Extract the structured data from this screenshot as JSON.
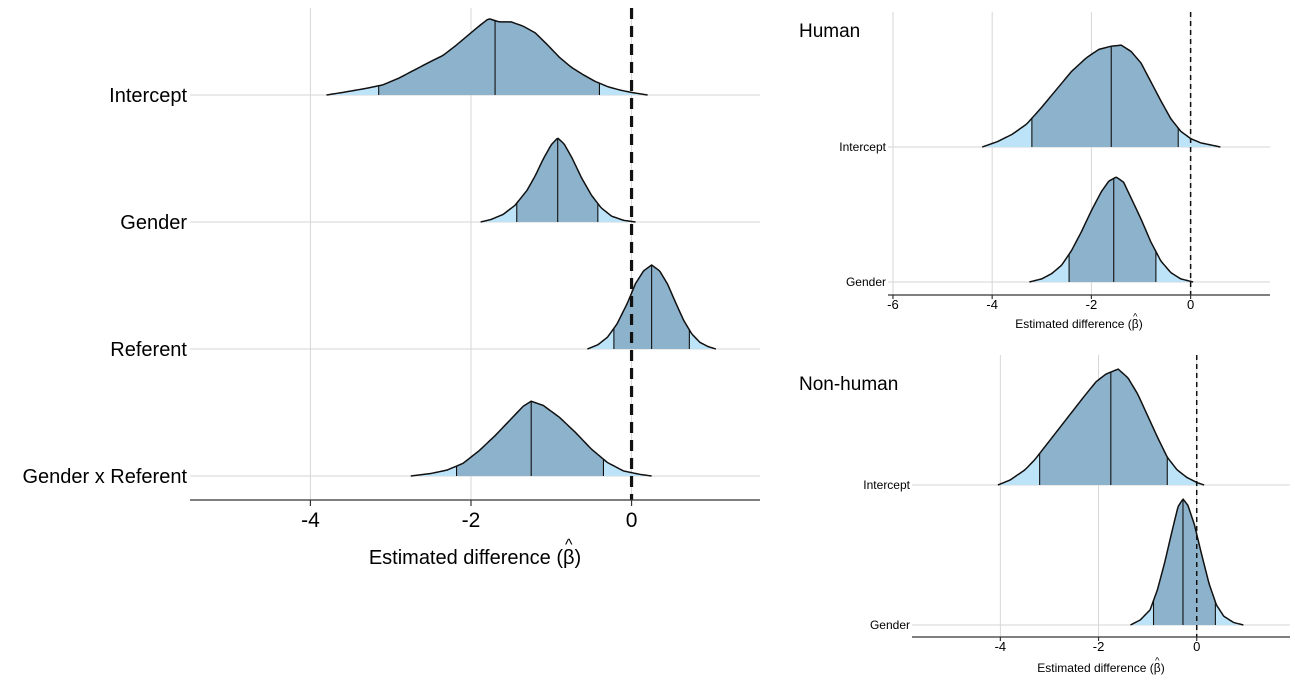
{
  "colors": {
    "inner_fill": "#8db3cc",
    "outer_fill": "#bde3f8",
    "outline": "#111111",
    "grid": "#d6d6d6",
    "zero_line": "#111111"
  },
  "chart_data": [
    {
      "type": "ridgeline",
      "title": "",
      "xlabel": "Estimated difference (β̂)",
      "xlabel_text": "Estimated difference (",
      "xlabel_symbol": "β",
      "xlabel_hat": "^",
      "xlabel_close": ")",
      "xlim": [
        -5.5,
        1.6
      ],
      "xticks": [
        -4,
        -2,
        0
      ],
      "reference_line": 0,
      "grid": true,
      "rows": [
        {
          "label": "Intercept",
          "median": -1.7,
          "inner_interval": [
            -3.15,
            -0.4
          ],
          "outer_range": [
            -3.8,
            0.2
          ],
          "density": [
            [
              -3.8,
              0
            ],
            [
              -3.6,
              0.03
            ],
            [
              -3.3,
              0.08
            ],
            [
              -3.1,
              0.12
            ],
            [
              -2.9,
              0.2
            ],
            [
              -2.7,
              0.3
            ],
            [
              -2.5,
              0.4
            ],
            [
              -2.35,
              0.47
            ],
            [
              -2.2,
              0.58
            ],
            [
              -2.05,
              0.7
            ],
            [
              -1.9,
              0.82
            ],
            [
              -1.78,
              0.91
            ],
            [
              -1.65,
              0.87
            ],
            [
              -1.5,
              0.87
            ],
            [
              -1.35,
              0.82
            ],
            [
              -1.2,
              0.74
            ],
            [
              -1.05,
              0.6
            ],
            [
              -0.9,
              0.45
            ],
            [
              -0.75,
              0.33
            ],
            [
              -0.6,
              0.24
            ],
            [
              -0.45,
              0.16
            ],
            [
              -0.3,
              0.1
            ],
            [
              -0.15,
              0.06
            ],
            [
              0,
              0.03
            ],
            [
              0.2,
              0
            ]
          ]
        },
        {
          "label": "Gender",
          "median": -0.92,
          "inner_interval": [
            -1.43,
            -0.42
          ],
          "outer_range": [
            -1.88,
            0.05
          ],
          "density": [
            [
              -1.88,
              0
            ],
            [
              -1.75,
              0.03
            ],
            [
              -1.6,
              0.09
            ],
            [
              -1.45,
              0.2
            ],
            [
              -1.3,
              0.38
            ],
            [
              -1.2,
              0.55
            ],
            [
              -1.1,
              0.75
            ],
            [
              -1.0,
              0.92
            ],
            [
              -0.92,
              1.0
            ],
            [
              -0.84,
              0.93
            ],
            [
              -0.74,
              0.76
            ],
            [
              -0.62,
              0.52
            ],
            [
              -0.5,
              0.32
            ],
            [
              -0.38,
              0.17
            ],
            [
              -0.25,
              0.07
            ],
            [
              -0.1,
              0.02
            ],
            [
              0.05,
              0
            ]
          ]
        },
        {
          "label": "Referent",
          "median": 0.25,
          "inner_interval": [
            -0.22,
            0.72
          ],
          "outer_range": [
            -0.55,
            1.05
          ],
          "density": [
            [
              -0.55,
              0
            ],
            [
              -0.42,
              0.05
            ],
            [
              -0.3,
              0.14
            ],
            [
              -0.18,
              0.3
            ],
            [
              -0.05,
              0.55
            ],
            [
              0.05,
              0.78
            ],
            [
              0.15,
              0.93
            ],
            [
              0.25,
              1.0
            ],
            [
              0.35,
              0.93
            ],
            [
              0.45,
              0.77
            ],
            [
              0.55,
              0.55
            ],
            [
              0.65,
              0.34
            ],
            [
              0.75,
              0.18
            ],
            [
              0.85,
              0.08
            ],
            [
              0.95,
              0.03
            ],
            [
              1.05,
              0
            ]
          ]
        },
        {
          "label": "Gender x Referent",
          "median": -1.25,
          "inner_interval": [
            -2.18,
            -0.35
          ],
          "outer_range": [
            -2.75,
            0.25
          ],
          "density": [
            [
              -2.75,
              0
            ],
            [
              -2.5,
              0.03
            ],
            [
              -2.3,
              0.07
            ],
            [
              -2.1,
              0.15
            ],
            [
              -1.9,
              0.3
            ],
            [
              -1.7,
              0.48
            ],
            [
              -1.5,
              0.68
            ],
            [
              -1.35,
              0.83
            ],
            [
              -1.25,
              0.89
            ],
            [
              -1.1,
              0.84
            ],
            [
              -0.9,
              0.7
            ],
            [
              -0.7,
              0.52
            ],
            [
              -0.5,
              0.32
            ],
            [
              -0.3,
              0.16
            ],
            [
              -0.1,
              0.06
            ],
            [
              0.1,
              0.02
            ],
            [
              0.25,
              0
            ]
          ]
        }
      ]
    },
    {
      "type": "ridgeline",
      "title": "Human",
      "xlabel": "Estimated difference (β̂)",
      "xlabel_text": "Estimated difference (",
      "xlabel_symbol": "β",
      "xlabel_hat": "^",
      "xlabel_close": ")",
      "xlim": [
        -6.1,
        1.6
      ],
      "xticks": [
        -6,
        -4,
        -2,
        0
      ],
      "reference_line": 0,
      "grid": true,
      "rows": [
        {
          "label": "Intercept",
          "median": -1.6,
          "inner_interval": [
            -3.2,
            -0.25
          ],
          "outer_range": [
            -4.2,
            0.6
          ],
          "density": [
            [
              -4.2,
              0
            ],
            [
              -3.9,
              0.05
            ],
            [
              -3.6,
              0.12
            ],
            [
              -3.3,
              0.22
            ],
            [
              -3.0,
              0.38
            ],
            [
              -2.7,
              0.55
            ],
            [
              -2.4,
              0.72
            ],
            [
              -2.1,
              0.85
            ],
            [
              -1.85,
              0.93
            ],
            [
              -1.6,
              0.96
            ],
            [
              -1.4,
              0.97
            ],
            [
              -1.2,
              0.91
            ],
            [
              -1.0,
              0.8
            ],
            [
              -0.8,
              0.62
            ],
            [
              -0.6,
              0.44
            ],
            [
              -0.4,
              0.27
            ],
            [
              -0.2,
              0.15
            ],
            [
              0,
              0.08
            ],
            [
              0.2,
              0.04
            ],
            [
              0.4,
              0.02
            ],
            [
              0.6,
              0
            ]
          ]
        },
        {
          "label": "Gender",
          "median": -1.55,
          "inner_interval": [
            -2.45,
            -0.7
          ],
          "outer_range": [
            -3.25,
            0.05
          ],
          "density": [
            [
              -3.25,
              0
            ],
            [
              -3.0,
              0.03
            ],
            [
              -2.8,
              0.08
            ],
            [
              -2.6,
              0.16
            ],
            [
              -2.4,
              0.3
            ],
            [
              -2.2,
              0.48
            ],
            [
              -2.0,
              0.68
            ],
            [
              -1.8,
              0.86
            ],
            [
              -1.65,
              0.96
            ],
            [
              -1.5,
              1.0
            ],
            [
              -1.35,
              0.95
            ],
            [
              -1.2,
              0.8
            ],
            [
              -1.0,
              0.6
            ],
            [
              -0.8,
              0.38
            ],
            [
              -0.6,
              0.2
            ],
            [
              -0.4,
              0.09
            ],
            [
              -0.2,
              0.03
            ],
            [
              0.05,
              0
            ]
          ]
        }
      ]
    },
    {
      "type": "ridgeline",
      "title": "Non-human",
      "xlabel": "Estimated difference (β̂)",
      "xlabel_text": "Estimated difference (",
      "xlabel_symbol": "β",
      "xlabel_hat": "^",
      "xlabel_close": ")",
      "xlim": [
        -5.8,
        1.9
      ],
      "xticks": [
        -4,
        -2,
        0
      ],
      "reference_line": 0,
      "grid": true,
      "rows": [
        {
          "label": "Intercept",
          "median": -1.75,
          "inner_interval": [
            -3.2,
            -0.6
          ],
          "outer_range": [
            -4.05,
            0.15
          ],
          "density": [
            [
              -4.05,
              0
            ],
            [
              -3.8,
              0.04
            ],
            [
              -3.5,
              0.12
            ],
            [
              -3.3,
              0.2
            ],
            [
              -3.1,
              0.3
            ],
            [
              -2.9,
              0.4
            ],
            [
              -2.6,
              0.55
            ],
            [
              -2.3,
              0.7
            ],
            [
              -2.05,
              0.82
            ],
            [
              -1.85,
              0.88
            ],
            [
              -1.6,
              0.92
            ],
            [
              -1.4,
              0.85
            ],
            [
              -1.2,
              0.72
            ],
            [
              -1.0,
              0.55
            ],
            [
              -0.8,
              0.38
            ],
            [
              -0.6,
              0.22
            ],
            [
              -0.4,
              0.12
            ],
            [
              -0.2,
              0.06
            ],
            [
              0,
              0.02
            ],
            [
              0.15,
              0
            ]
          ]
        },
        {
          "label": "Gender",
          "median": -0.28,
          "inner_interval": [
            -0.88,
            0.38
          ],
          "outer_range": [
            -1.35,
            0.95
          ],
          "density": [
            [
              -1.35,
              0
            ],
            [
              -1.15,
              0.04
            ],
            [
              -0.95,
              0.12
            ],
            [
              -0.8,
              0.28
            ],
            [
              -0.65,
              0.5
            ],
            [
              -0.5,
              0.75
            ],
            [
              -0.38,
              0.94
            ],
            [
              -0.28,
              1.0
            ],
            [
              -0.18,
              0.95
            ],
            [
              -0.05,
              0.8
            ],
            [
              0.1,
              0.56
            ],
            [
              0.25,
              0.33
            ],
            [
              0.4,
              0.16
            ],
            [
              0.55,
              0.07
            ],
            [
              0.75,
              0.02
            ],
            [
              0.95,
              0
            ]
          ]
        }
      ]
    }
  ]
}
